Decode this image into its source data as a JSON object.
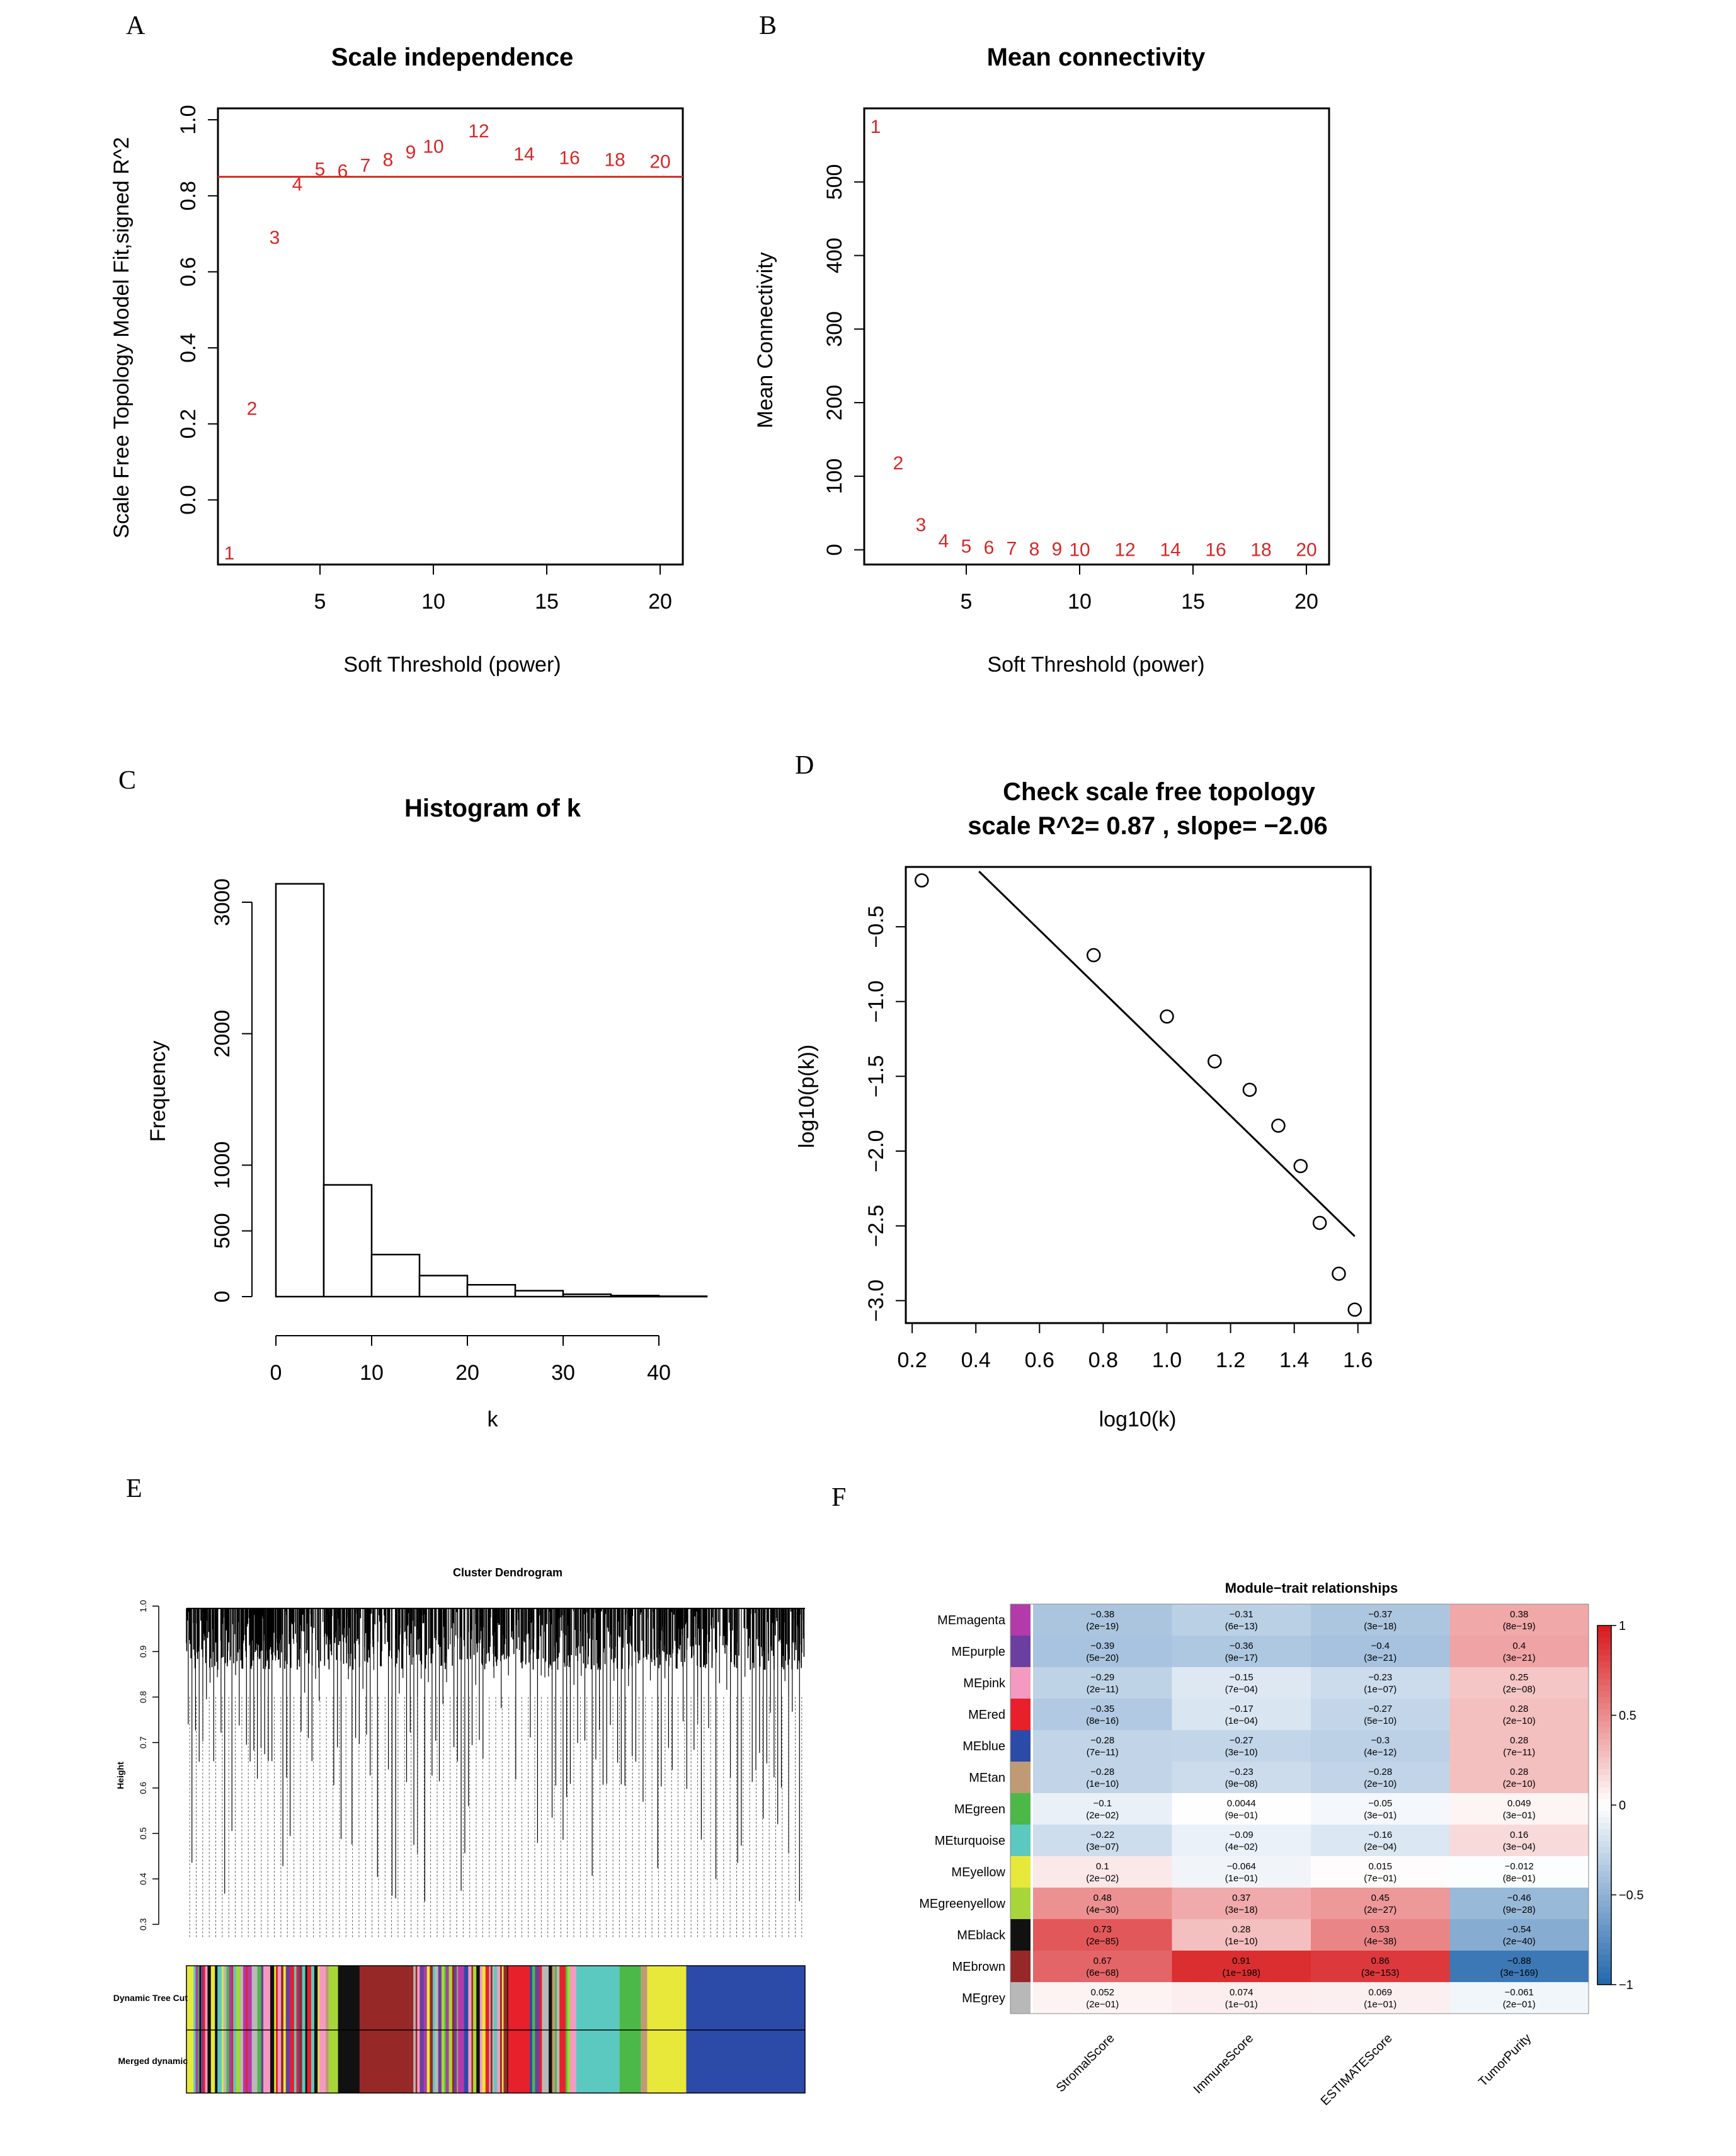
{
  "panels": {
    "A": "A",
    "B": "B",
    "C": "C",
    "D": "D",
    "E": "E",
    "F": "F"
  },
  "colors": {
    "points": "#d62728",
    "cutoff_line": "#d62728"
  },
  "chart_data": [
    {
      "panel": "A",
      "type": "scatter",
      "title": "Scale independence",
      "xlabel": "Soft Threshold (power)",
      "ylabel": "Scale Free Topology Model Fit,signed R^2",
      "xlim": [
        0.5,
        21
      ],
      "ylim": [
        -0.17,
        1.03
      ],
      "xticks": [
        5,
        10,
        15,
        20
      ],
      "yticks": [
        0.0,
        0.2,
        0.4,
        0.6,
        0.8,
        1.0
      ],
      "hline": 0.85,
      "points": [
        {
          "x": 1,
          "y": -0.14,
          "label": "1"
        },
        {
          "x": 2,
          "y": 0.24,
          "label": "2"
        },
        {
          "x": 3,
          "y": 0.69,
          "label": "3"
        },
        {
          "x": 4,
          "y": 0.83,
          "label": "4"
        },
        {
          "x": 5,
          "y": 0.87,
          "label": "5"
        },
        {
          "x": 6,
          "y": 0.865,
          "label": "6"
        },
        {
          "x": 7,
          "y": 0.88,
          "label": "7"
        },
        {
          "x": 8,
          "y": 0.895,
          "label": "8"
        },
        {
          "x": 9,
          "y": 0.915,
          "label": "9"
        },
        {
          "x": 10,
          "y": 0.93,
          "label": "10"
        },
        {
          "x": 12,
          "y": 0.97,
          "label": "12"
        },
        {
          "x": 14,
          "y": 0.91,
          "label": "14"
        },
        {
          "x": 16,
          "y": 0.9,
          "label": "16"
        },
        {
          "x": 18,
          "y": 0.895,
          "label": "18"
        },
        {
          "x": 20,
          "y": 0.89,
          "label": "20"
        }
      ]
    },
    {
      "panel": "B",
      "type": "scatter",
      "title": "Mean connectivity",
      "xlabel": "Soft Threshold (power)",
      "ylabel": "Mean Connectivity",
      "xlim": [
        0.5,
        21
      ],
      "ylim": [
        -20,
        600
      ],
      "xticks": [
        5,
        10,
        15,
        20
      ],
      "yticks": [
        0,
        100,
        200,
        300,
        400,
        500
      ],
      "points": [
        {
          "x": 1,
          "y": 575,
          "label": "1"
        },
        {
          "x": 2,
          "y": 118,
          "label": "2"
        },
        {
          "x": 3,
          "y": 34,
          "label": "3"
        },
        {
          "x": 4,
          "y": 12,
          "label": "4"
        },
        {
          "x": 5,
          "y": 5,
          "label": "5"
        },
        {
          "x": 6,
          "y": 3,
          "label": "6"
        },
        {
          "x": 7,
          "y": 2,
          "label": "7"
        },
        {
          "x": 8,
          "y": 1,
          "label": "8"
        },
        {
          "x": 9,
          "y": 1,
          "label": "9"
        },
        {
          "x": 10,
          "y": 0,
          "label": "10"
        },
        {
          "x": 12,
          "y": 0,
          "label": "12"
        },
        {
          "x": 14,
          "y": 0,
          "label": "14"
        },
        {
          "x": 16,
          "y": 0,
          "label": "16"
        },
        {
          "x": 18,
          "y": 0,
          "label": "18"
        },
        {
          "x": 20,
          "y": 0,
          "label": "20"
        }
      ]
    },
    {
      "panel": "C",
      "type": "bar",
      "title": "Histogram of k",
      "xlabel": "k",
      "ylabel": "Frequency",
      "xlim": [
        -2,
        46
      ],
      "ylim": [
        -30,
        3250
      ],
      "xticks": [
        0,
        10,
        20,
        30,
        40
      ],
      "yticks": [
        0,
        500,
        1000,
        2000,
        3000
      ],
      "bins": [
        [
          0,
          5
        ],
        [
          5,
          10
        ],
        [
          10,
          15
        ],
        [
          15,
          20
        ],
        [
          20,
          25
        ],
        [
          25,
          30
        ],
        [
          30,
          35
        ],
        [
          35,
          40
        ],
        [
          40,
          45
        ]
      ],
      "values": [
        3140,
        850,
        320,
        160,
        90,
        45,
        18,
        8,
        3
      ]
    },
    {
      "panel": "D",
      "type": "scatter",
      "title": "Check scale free topology",
      "subtitle": "scale R^2= 0.87 , slope= −2.06",
      "xlabel": "log10(k)",
      "ylabel": "log10(p(k))",
      "xlim": [
        0.18,
        1.64
      ],
      "ylim": [
        -3.15,
        -0.1
      ],
      "xticks": [
        0.2,
        0.4,
        0.6,
        0.8,
        1.0,
        1.2,
        1.4,
        1.6
      ],
      "xtick_labels": [
        "0.2",
        "0.4",
        "0.6",
        "0.8",
        "1.0",
        "1.2",
        "1.4",
        "1.6"
      ],
      "yticks": [
        -0.5,
        -1.0,
        -1.5,
        -2.0,
        -2.5,
        -3.0
      ],
      "ytick_labels": [
        "−0.5",
        "−1.0",
        "−1.5",
        "−2.0",
        "−2.5",
        "−3.0"
      ],
      "x": [
        0.23,
        0.77,
        1.0,
        1.15,
        1.26,
        1.35,
        1.42,
        1.48,
        1.54,
        1.59
      ],
      "y": [
        -0.19,
        -0.69,
        -1.1,
        -1.4,
        -1.59,
        -1.83,
        -2.1,
        -2.48,
        -2.82,
        -3.06
      ],
      "fit_line": {
        "x": [
          0.41,
          1.59
        ],
        "y": [
          -0.13,
          -2.57
        ]
      }
    },
    {
      "panel": "E",
      "type": "other",
      "title": "Cluster Dendrogram",
      "ylabel": "Height",
      "yticks": [
        0.3,
        0.4,
        0.5,
        0.6,
        0.7,
        0.8,
        0.9,
        1.0
      ],
      "ylim": [
        0.27,
        1.01
      ],
      "row_labels": [
        "Dynamic Tree Cut",
        "Merged dynamic"
      ]
    },
    {
      "panel": "F",
      "type": "heatmap",
      "title": "Module−trait relationships",
      "columns": [
        "StromalScore",
        "ImmuneScore",
        "ESTIMATEScore",
        "TumorPurity"
      ],
      "rows": [
        "MEmagenta",
        "MEpurple",
        "MEpink",
        "MEred",
        "MEblue",
        "MEtan",
        "MEgreen",
        "MEturquoise",
        "MEyellow",
        "MEgreenyellow",
        "MEblack",
        "MEbrown",
        "MEgrey"
      ],
      "row_colors": [
        "#b23aa9",
        "#6b3fa0",
        "#f49ac1",
        "#e8202c",
        "#2c4aa8",
        "#c09a74",
        "#4cb848",
        "#5cc9c0",
        "#e8e83a",
        "#a8d63a",
        "#111111",
        "#962828",
        "#b8b8b8"
      ],
      "values": [
        [
          -0.38,
          -0.31,
          -0.37,
          0.38
        ],
        [
          -0.39,
          -0.36,
          -0.4,
          0.4
        ],
        [
          -0.29,
          -0.15,
          -0.23,
          0.25
        ],
        [
          -0.35,
          -0.17,
          -0.27,
          0.28
        ],
        [
          -0.28,
          -0.27,
          -0.3,
          0.28
        ],
        [
          -0.28,
          -0.23,
          -0.28,
          0.28
        ],
        [
          -0.1,
          0.0044,
          -0.05,
          0.049
        ],
        [
          -0.22,
          -0.09,
          -0.16,
          0.16
        ],
        [
          0.1,
          -0.064,
          0.015,
          -0.012
        ],
        [
          0.48,
          0.37,
          0.45,
          -0.46
        ],
        [
          0.73,
          0.28,
          0.53,
          -0.54
        ],
        [
          0.67,
          0.91,
          0.86,
          -0.88
        ],
        [
          0.052,
          0.074,
          0.069,
          -0.061
        ]
      ],
      "value_labels": [
        [
          "−0.38",
          "−0.31",
          "−0.37",
          "0.38"
        ],
        [
          "−0.39",
          "−0.36",
          "−0.4",
          "0.4"
        ],
        [
          "−0.29",
          "−0.15",
          "−0.23",
          "0.25"
        ],
        [
          "−0.35",
          "−0.17",
          "−0.27",
          "0.28"
        ],
        [
          "−0.28",
          "−0.27",
          "−0.3",
          "0.28"
        ],
        [
          "−0.28",
          "−0.23",
          "−0.28",
          "0.28"
        ],
        [
          "−0.1",
          "0.0044",
          "−0.05",
          "0.049"
        ],
        [
          "−0.22",
          "−0.09",
          "−0.16",
          "0.16"
        ],
        [
          "0.1",
          "−0.064",
          "0.015",
          "−0.012"
        ],
        [
          "0.48",
          "0.37",
          "0.45",
          "−0.46"
        ],
        [
          "0.73",
          "0.28",
          "0.53",
          "−0.54"
        ],
        [
          "0.67",
          "0.91",
          "0.86",
          "−0.88"
        ],
        [
          "0.052",
          "0.074",
          "0.069",
          "−0.061"
        ]
      ],
      "pvalues": [
        [
          "(2e−19)",
          "(6e−13)",
          "(3e−18)",
          "(8e−19)"
        ],
        [
          "(5e−20)",
          "(9e−17)",
          "(3e−21)",
          "(3e−21)"
        ],
        [
          "(2e−11)",
          "(7e−04)",
          "(1e−07)",
          "(2e−08)"
        ],
        [
          "(8e−16)",
          "(1e−04)",
          "(5e−10)",
          "(2e−10)"
        ],
        [
          "(7e−11)",
          "(3e−10)",
          "(4e−12)",
          "(7e−11)"
        ],
        [
          "(1e−10)",
          "(9e−08)",
          "(2e−10)",
          "(2e−10)"
        ],
        [
          "(2e−02)",
          "(9e−01)",
          "(3e−01)",
          "(3e−01)"
        ],
        [
          "(3e−07)",
          "(4e−02)",
          "(2e−04)",
          "(3e−04)"
        ],
        [
          "(2e−02)",
          "(1e−01)",
          "(7e−01)",
          "(8e−01)"
        ],
        [
          "(4e−30)",
          "(3e−18)",
          "(2e−27)",
          "(9e−28)"
        ],
        [
          "(2e−85)",
          "(1e−10)",
          "(4e−38)",
          "(2e−40)"
        ],
        [
          "(6e−68)",
          "(1e−198)",
          "(3e−153)",
          "(3e−169)"
        ],
        [
          "(2e−01)",
          "(1e−01)",
          "(1e−01)",
          "(2e−01)"
        ]
      ],
      "colorbar_ticks": [
        "1",
        "0.5",
        "0",
        "−0.5",
        "−1"
      ],
      "colorbar_values": [
        1,
        0.5,
        0,
        -0.5,
        -1
      ],
      "colorscale": {
        "low": "#2166ac",
        "mid": "#ffffff",
        "high": "#d7191c"
      }
    }
  ]
}
